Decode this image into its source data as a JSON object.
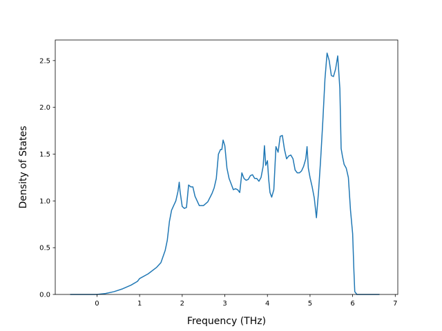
{
  "chart_data": {
    "type": "line",
    "title": "",
    "xlabel": "Frequency (THz)",
    "ylabel": "Density of States",
    "xlim": [
      -0.98,
      7.06
    ],
    "ylim": [
      0.0,
      2.72
    ],
    "xticks": [
      0,
      1,
      2,
      3,
      4,
      5,
      6,
      7
    ],
    "yticks": [
      0.0,
      0.5,
      1.0,
      1.5,
      2.0,
      2.5
    ],
    "xtick_labels": [
      "0",
      "1",
      "2",
      "3",
      "4",
      "5",
      "6",
      "7"
    ],
    "ytick_labels": [
      "0.0",
      "0.5",
      "1.0",
      "1.5",
      "2.0",
      "2.5"
    ],
    "grid": false,
    "legend": "none",
    "series": [
      {
        "color": "#1f77b4",
        "x": [
          -0.63,
          0.0,
          0.2,
          0.4,
          0.6,
          0.8,
          0.95,
          1.0,
          1.2,
          1.4,
          1.5,
          1.6,
          1.65,
          1.7,
          1.75,
          1.8,
          1.85,
          1.9,
          1.93,
          1.95,
          2.0,
          2.05,
          2.1,
          2.15,
          2.2,
          2.25,
          2.3,
          2.4,
          2.5,
          2.6,
          2.7,
          2.75,
          2.8,
          2.85,
          2.9,
          2.93,
          2.96,
          3.0,
          3.05,
          3.1,
          3.15,
          3.2,
          3.25,
          3.3,
          3.35,
          3.4,
          3.45,
          3.5,
          3.55,
          3.6,
          3.65,
          3.7,
          3.75,
          3.8,
          3.85,
          3.9,
          3.93,
          3.96,
          4.0,
          4.03,
          4.06,
          4.1,
          4.15,
          4.2,
          4.25,
          4.3,
          4.35,
          4.4,
          4.45,
          4.5,
          4.55,
          4.6,
          4.65,
          4.7,
          4.75,
          4.8,
          4.85,
          4.9,
          4.93,
          4.96,
          5.0,
          5.05,
          5.1,
          5.15,
          5.2,
          5.25,
          5.3,
          5.35,
          5.4,
          5.45,
          5.5,
          5.55,
          5.6,
          5.65,
          5.7,
          5.73,
          5.76,
          5.8,
          5.85,
          5.9,
          5.95,
          6.0,
          6.03,
          6.05,
          6.1,
          6.2,
          6.63
        ],
        "y": [
          0.0,
          0.0,
          0.01,
          0.03,
          0.06,
          0.1,
          0.14,
          0.17,
          0.22,
          0.29,
          0.34,
          0.47,
          0.58,
          0.78,
          0.9,
          0.95,
          1.0,
          1.1,
          1.2,
          1.1,
          0.94,
          0.92,
          0.93,
          1.17,
          1.15,
          1.15,
          1.05,
          0.95,
          0.95,
          0.99,
          1.08,
          1.14,
          1.24,
          1.5,
          1.55,
          1.55,
          1.65,
          1.59,
          1.35,
          1.24,
          1.18,
          1.12,
          1.13,
          1.12,
          1.09,
          1.3,
          1.24,
          1.22,
          1.23,
          1.27,
          1.28,
          1.24,
          1.24,
          1.21,
          1.25,
          1.37,
          1.59,
          1.38,
          1.43,
          1.23,
          1.09,
          1.04,
          1.12,
          1.58,
          1.52,
          1.69,
          1.7,
          1.55,
          1.45,
          1.48,
          1.49,
          1.45,
          1.33,
          1.3,
          1.3,
          1.32,
          1.37,
          1.45,
          1.58,
          1.35,
          1.25,
          1.15,
          1.03,
          0.82,
          1.1,
          1.45,
          1.85,
          2.3,
          2.58,
          2.5,
          2.34,
          2.33,
          2.41,
          2.55,
          2.2,
          1.56,
          1.48,
          1.39,
          1.35,
          1.25,
          0.9,
          0.65,
          0.25,
          0.03,
          0.0,
          0.0,
          0.0
        ]
      }
    ]
  }
}
